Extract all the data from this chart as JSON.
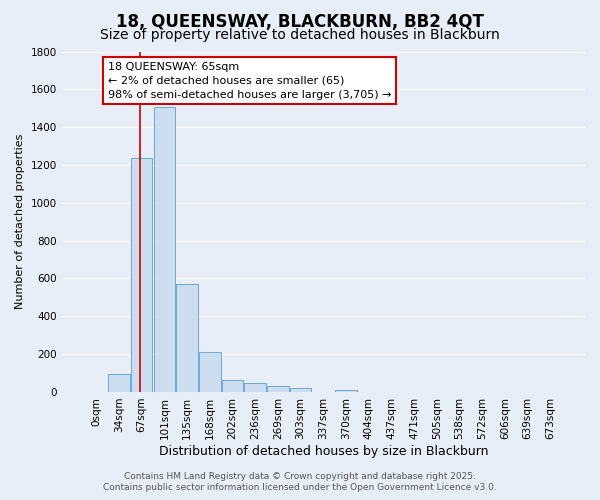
{
  "title": "18, QUEENSWAY, BLACKBURN, BB2 4QT",
  "subtitle": "Size of property relative to detached houses in Blackburn",
  "xlabel": "Distribution of detached houses by size in Blackburn",
  "ylabel": "Number of detached properties",
  "bar_labels": [
    "0sqm",
    "34sqm",
    "67sqm",
    "101sqm",
    "135sqm",
    "168sqm",
    "202sqm",
    "236sqm",
    "269sqm",
    "303sqm",
    "337sqm",
    "370sqm",
    "404sqm",
    "437sqm",
    "471sqm",
    "505sqm",
    "538sqm",
    "572sqm",
    "606sqm",
    "639sqm",
    "673sqm"
  ],
  "bar_values": [
    0,
    95,
    1235,
    1505,
    570,
    210,
    65,
    48,
    30,
    20,
    0,
    8,
    0,
    0,
    0,
    0,
    0,
    0,
    0,
    0,
    0
  ],
  "bar_color": "#ccddf0",
  "bar_edge_color": "#6aaad4",
  "ylim": [
    0,
    1800
  ],
  "yticks": [
    0,
    200,
    400,
    600,
    800,
    1000,
    1200,
    1400,
    1600,
    1800
  ],
  "annotation_title": "18 QUEENSWAY: 65sqm",
  "annotation_line1": "← 2% of detached houses are smaller (65)",
  "annotation_line2": "98% of semi-detached houses are larger (3,705) →",
  "annotation_box_facecolor": "#ffffff",
  "annotation_box_edgecolor": "#cc0000",
  "vline_color": "#cc0000",
  "footer1": "Contains HM Land Registry data © Crown copyright and database right 2025.",
  "footer2": "Contains public sector information licensed under the Open Government Licence v3.0.",
  "bg_color": "#e8eef8",
  "plot_bg_color": "#e8eef8",
  "grid_color": "#ffffff",
  "title_fontsize": 12,
  "subtitle_fontsize": 10,
  "xlabel_fontsize": 9,
  "ylabel_fontsize": 8,
  "tick_fontsize": 7.5,
  "annotation_fontsize": 8,
  "footer_fontsize": 6.5
}
